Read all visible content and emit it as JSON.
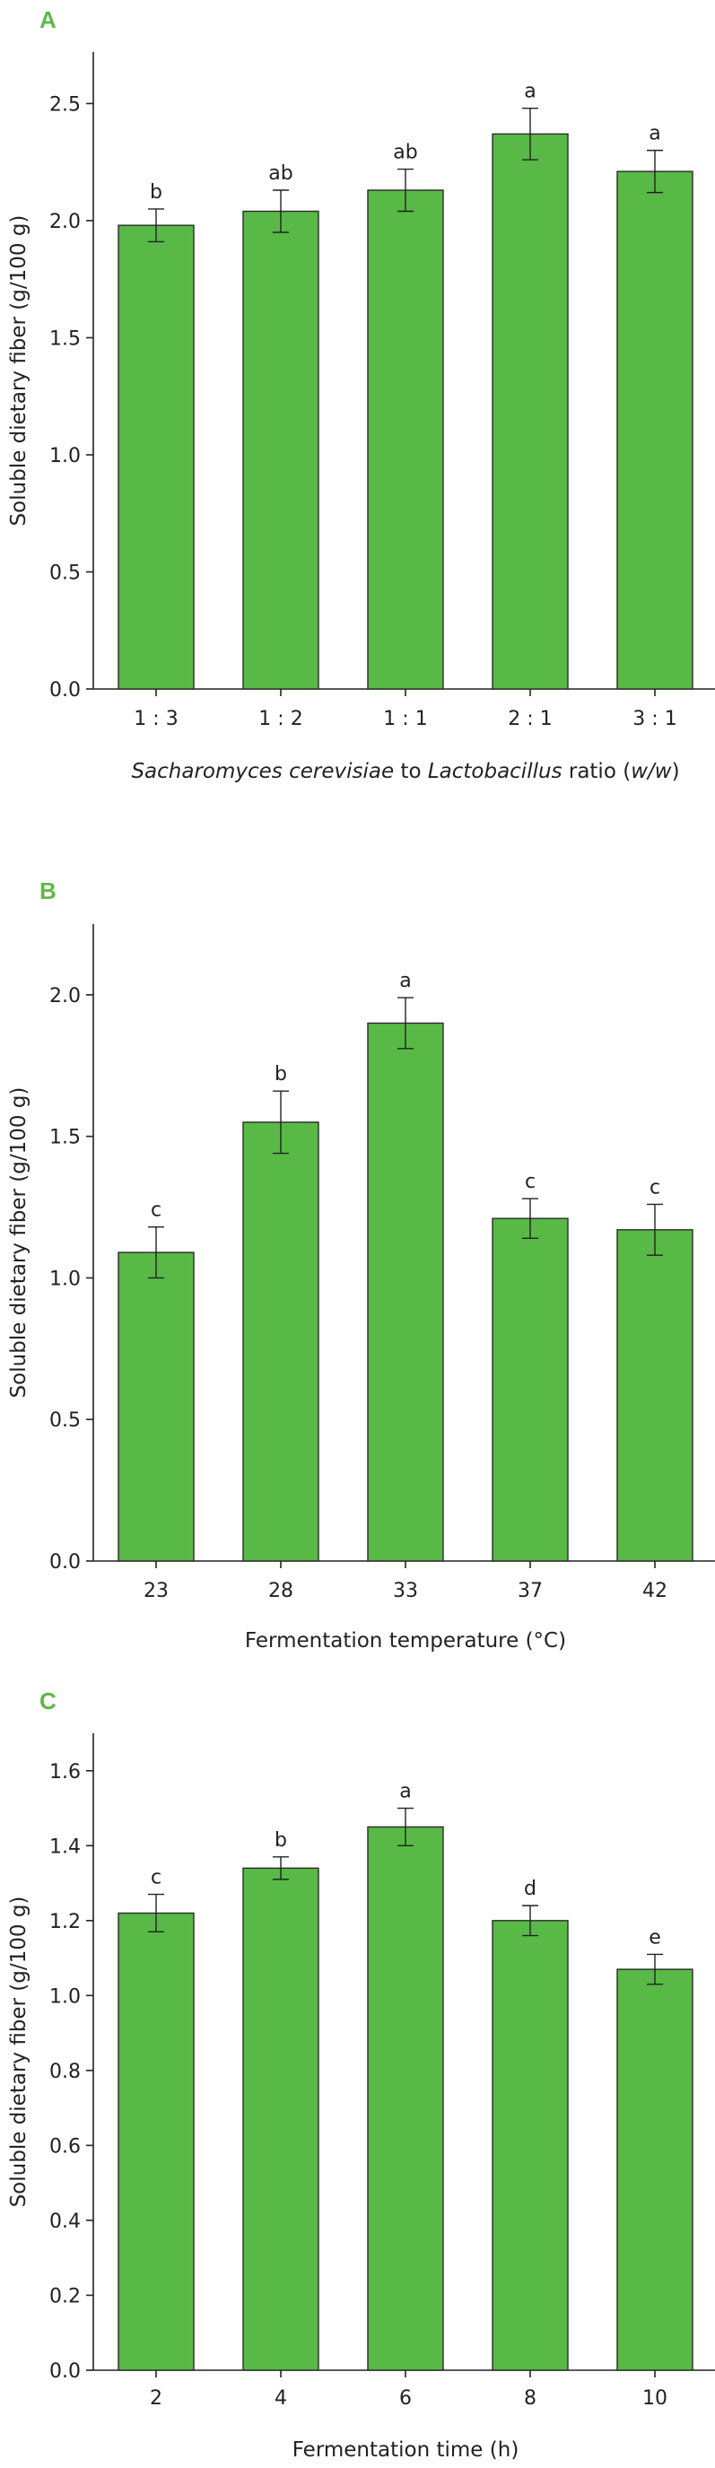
{
  "chart_data": [
    {
      "panel": "A",
      "type": "bar",
      "categories": [
        "1 : 3",
        "1 : 2",
        "1 : 1",
        "2 : 1",
        "3 : 1"
      ],
      "values": [
        1.98,
        2.04,
        2.13,
        2.37,
        2.21
      ],
      "errors": [
        0.07,
        0.09,
        0.09,
        0.11,
        0.09
      ],
      "significance": [
        "b",
        "ab",
        "ab",
        "a",
        "a"
      ],
      "ylabel": "Soluble dietary fiber (g/100 g)",
      "xlabel_parts": [
        {
          "text": "Sacharomyces cerevisiae",
          "italic": true
        },
        {
          "text": " to ",
          "italic": false
        },
        {
          "text": "Lactobacillus",
          "italic": true
        },
        {
          "text": " ratio (",
          "italic": false
        },
        {
          "text": "w/w",
          "italic": true
        },
        {
          "text": ")",
          "italic": false
        }
      ],
      "yticks": [
        "0.0",
        "0.5",
        "1.0",
        "1.5",
        "2.0",
        "2.5"
      ],
      "ylim": [
        0,
        2.72
      ]
    },
    {
      "panel": "B",
      "type": "bar",
      "categories": [
        "23",
        "28",
        "33",
        "37",
        "42"
      ],
      "values": [
        1.09,
        1.55,
        1.9,
        1.21,
        1.17
      ],
      "errors": [
        0.09,
        0.11,
        0.09,
        0.07,
        0.09
      ],
      "significance": [
        "c",
        "b",
        "a",
        "c",
        "c"
      ],
      "ylabel": "Soluble dietary fiber (g/100 g)",
      "xlabel_parts": [
        {
          "text": "Fermentation temperature (°C)",
          "italic": false
        }
      ],
      "yticks": [
        "0.0",
        "0.5",
        "1.0",
        "1.5",
        "2.0"
      ],
      "ylim": [
        0,
        2.25
      ]
    },
    {
      "panel": "C",
      "type": "bar",
      "categories": [
        "2",
        "4",
        "6",
        "8",
        "10"
      ],
      "values": [
        1.22,
        1.34,
        1.45,
        1.2,
        1.07
      ],
      "errors": [
        0.05,
        0.03,
        0.05,
        0.04,
        0.04
      ],
      "significance": [
        "c",
        "b",
        "a",
        "d",
        "e"
      ],
      "ylabel": "Soluble dietary fiber (g/100 g)",
      "xlabel_parts": [
        {
          "text": "Fermentation time (h)",
          "italic": false
        }
      ],
      "yticks": [
        "0.0",
        "0.2",
        "0.4",
        "0.6",
        "0.8",
        "1.0",
        "1.2",
        "1.4",
        "1.6"
      ],
      "ylim": [
        0,
        1.7
      ]
    }
  ]
}
